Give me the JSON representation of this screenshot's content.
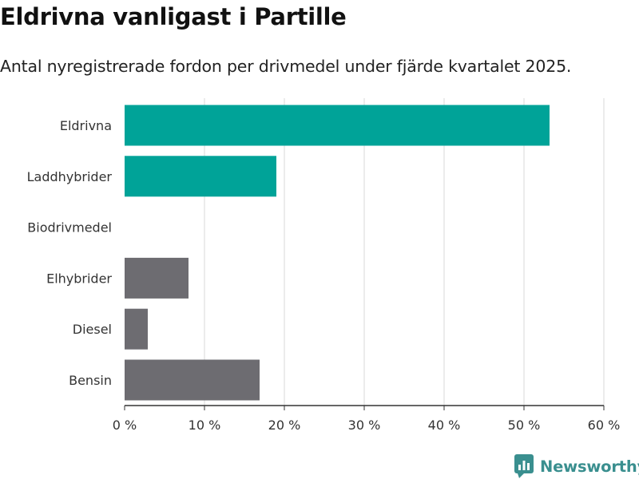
{
  "chart_data": {
    "type": "bar",
    "orientation": "horizontal",
    "title": "Eldrivna vanligast i Partille",
    "subtitle": "Antal nyregistrerade fordon per drivmedel under fjärde kvartalet 2025.",
    "categories": [
      "Eldrivna",
      "Laddhybrider",
      "Biodrivmedel",
      "Elhybrider",
      "Diesel",
      "Bensin"
    ],
    "values": [
      53.2,
      19.0,
      0,
      8.0,
      2.9,
      16.9
    ],
    "colors": [
      "#00a398",
      "#00a398",
      "#00a398",
      "#6d6c71",
      "#6d6c71",
      "#6d6c71"
    ],
    "xlim": [
      0,
      60
    ],
    "xticks": [
      0,
      10,
      20,
      30,
      40,
      50,
      60
    ],
    "xtick_labels": [
      "0 %",
      "10 %",
      "20 %",
      "30 %",
      "40 %",
      "50 %",
      "60 %"
    ],
    "grid": true,
    "xlabel": "",
    "ylabel": ""
  },
  "brand": {
    "name": "Newsworthy",
    "logo_icon": "newsworthy-logo-icon",
    "color": "#3a8f8f"
  }
}
